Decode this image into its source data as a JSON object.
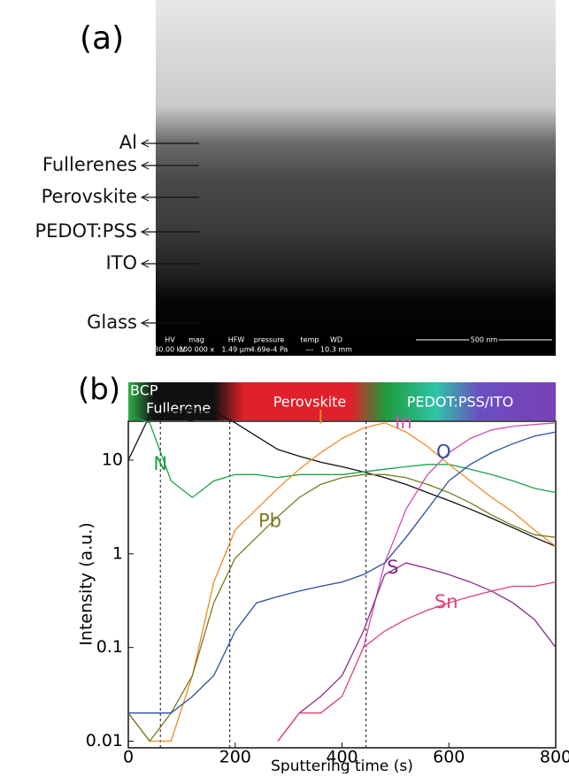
{
  "sem_image": {
    "panel_label": "(a)",
    "layers": [
      "Al",
      "Fullerenes",
      "Perovskite",
      "PEDOT:PSS",
      "ITO",
      "Glass"
    ],
    "info": [
      {
        "label": "HV",
        "value": "30.00 kV"
      },
      {
        "label": "mag",
        "value": "100 000 x"
      },
      {
        "label": "HFW",
        "value": "1.49 µm"
      },
      {
        "label": "pressure",
        "value": "4.69e-4 Pa"
      },
      {
        "label": "temp",
        "value": "---"
      },
      {
        "label": "WD",
        "value": "10.3 mm"
      }
    ],
    "scale_bar": "500 nm"
  },
  "chart_data": {
    "type": "line",
    "panel_label": "(b)",
    "layer_bar": [
      "BCP",
      "Fullerene",
      "Perovskite",
      "PEDOT:PSS/ITO"
    ],
    "x_label": "Sputtering time (s)",
    "y_label": "Intensity (a.u.)",
    "log_y": true,
    "xlim": [
      0,
      800
    ],
    "xticks": [
      0,
      200,
      400,
      600,
      800
    ],
    "ylim": [
      0.0085,
      26
    ],
    "yticks": [
      0.01,
      0.1,
      1,
      10
    ],
    "boundaries": [
      60,
      190,
      445
    ],
    "x": [
      0,
      40,
      80,
      120,
      160,
      200,
      240,
      280,
      320,
      360,
      400,
      440,
      480,
      520,
      560,
      600,
      640,
      680,
      720,
      760,
      800
    ],
    "series": [
      {
        "name": "C",
        "color": "#111111",
        "values": [
          10,
          30,
          33,
          33,
          33,
          25,
          18,
          13,
          11,
          9.5,
          8.5,
          7.5,
          6.5,
          5.5,
          4.5,
          3.7,
          3,
          2.4,
          1.9,
          1.5,
          1.2
        ]
      },
      {
        "name": "N",
        "color": "#1aa34a",
        "values": [
          30,
          25,
          6,
          4,
          6,
          7,
          7,
          6.5,
          7,
          7,
          7,
          7.5,
          8,
          8.5,
          9,
          9,
          8,
          7,
          6,
          5,
          4.5
        ]
      },
      {
        "name": "I",
        "color": "#f08a24",
        "values": [
          0.02,
          0.01,
          0.01,
          0.05,
          0.5,
          1.8,
          3,
          5,
          8,
          12,
          17,
          22,
          25,
          20,
          14,
          9,
          6,
          4,
          2.8,
          1.8,
          1.2
        ]
      },
      {
        "name": "Pb",
        "color": "#7a7a1e",
        "values": [
          0.02,
          0.01,
          0.02,
          0.05,
          0.3,
          0.9,
          1.5,
          2.5,
          4,
          5.5,
          6.5,
          7,
          7,
          6.5,
          5.5,
          4.5,
          3.5,
          2.6,
          2,
          1.6,
          1.5
        ]
      },
      {
        "name": "In",
        "color": "#d04fb0",
        "values": [
          null,
          null,
          null,
          null,
          null,
          null,
          null,
          null,
          null,
          null,
          null,
          0.1,
          0.8,
          3,
          7,
          12,
          17,
          21,
          23,
          24,
          25
        ]
      },
      {
        "name": "O",
        "color": "#2f4fa8",
        "values": [
          0.02,
          0.02,
          0.02,
          0.03,
          0.05,
          0.15,
          0.3,
          0.35,
          0.4,
          0.45,
          0.5,
          0.6,
          0.8,
          1.5,
          3,
          6,
          9,
          12,
          15,
          18,
          20
        ]
      },
      {
        "name": "S",
        "color": "#8a2c8e",
        "values": [
          null,
          null,
          null,
          null,
          null,
          null,
          null,
          0.01,
          0.02,
          0.03,
          0.05,
          0.15,
          0.6,
          0.8,
          0.7,
          0.6,
          0.5,
          0.4,
          0.3,
          0.2,
          0.1
        ]
      },
      {
        "name": "Sn",
        "color": "#e0407a",
        "values": [
          null,
          null,
          null,
          null,
          null,
          null,
          null,
          0.01,
          0.02,
          0.02,
          0.03,
          0.1,
          0.15,
          0.2,
          0.25,
          0.3,
          0.35,
          0.4,
          0.45,
          0.45,
          0.5
        ]
      }
    ]
  }
}
